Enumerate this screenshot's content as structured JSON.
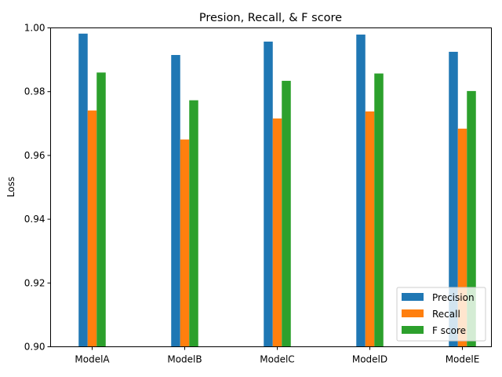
{
  "chart_data": {
    "type": "bar",
    "title": "Presion, Recall, & F score",
    "xlabel": "",
    "ylabel": "Loss",
    "categories": [
      "ModelA",
      "ModelB",
      "ModelC",
      "ModelD",
      "ModelE"
    ],
    "ylim": [
      0.9,
      1.0
    ],
    "yticks": [
      "0.90",
      "0.92",
      "0.94",
      "0.96",
      "0.98",
      "1.00"
    ],
    "grid": false,
    "legend_position": "lower-right",
    "series": [
      {
        "name": "Precision",
        "color": "#1f77b4",
        "values": [
          0.9982,
          0.9915,
          0.9957,
          0.9979,
          0.9925
        ]
      },
      {
        "name": "Recall",
        "color": "#ff7f0e",
        "values": [
          0.9741,
          0.965,
          0.9716,
          0.9738,
          0.9684
        ]
      },
      {
        "name": "F score",
        "color": "#2ca02c",
        "values": [
          0.986,
          0.9773,
          0.9834,
          0.9857,
          0.9802
        ]
      }
    ]
  }
}
